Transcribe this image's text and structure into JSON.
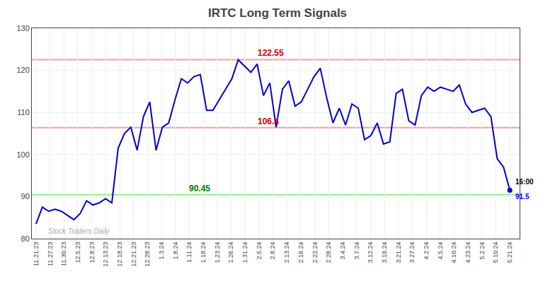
{
  "chart_data": {
    "type": "line",
    "title": "IRTC Long Term Signals",
    "x": [
      0,
      0.4533,
      0.9067,
      1.36,
      1.8133,
      2.2667,
      2.72,
      3.1733,
      3.6267,
      4.08,
      4.5333,
      4.9867,
      5.44,
      5.8933,
      6.3467,
      6.8,
      7.2533,
      7.7067,
      8.16,
      8.6133,
      9.0667,
      9.52,
      9.9733,
      10.4267,
      10.88,
      11.3333,
      11.7867,
      12.24,
      12.6933,
      13.1467,
      13.6,
      14.0533,
      14.5067,
      14.96,
      15.4133,
      15.8667,
      16.32,
      16.7733,
      17.2267,
      17.68,
      18.1333,
      18.5867,
      19.04,
      19.4933,
      19.9467,
      20.4,
      20.8533,
      21.3067,
      21.76,
      22.2133,
      22.6667,
      23.12,
      23.5733,
      24.0267,
      24.48,
      24.9333,
      25.3867,
      25.84,
      26.2933,
      26.7467,
      27.2,
      27.6533,
      28.1067,
      28.56,
      29.0133,
      29.4667,
      29.92,
      30.3733,
      30.8267,
      31.28,
      31.7333,
      32.1867,
      32.64,
      33.0933,
      33.5467,
      34
    ],
    "values": [
      83.5,
      87.5,
      86.5,
      87.0,
      86.5,
      85.5,
      84.5,
      86.0,
      89.0,
      88.0,
      88.5,
      89.5,
      88.5,
      101.5,
      105.0,
      106.5,
      101.0,
      109.0,
      112.5,
      101.0,
      106.5,
      107.5,
      113.0,
      118.0,
      117.0,
      118.5,
      119.0,
      110.5,
      110.5,
      113.0,
      115.5,
      118.0,
      122.5,
      121.0,
      119.5,
      121.5,
      114.0,
      117.0,
      106.5,
      115.5,
      117.5,
      111.5,
      112.5,
      115.5,
      118.5,
      120.5,
      113.5,
      107.5,
      111.0,
      107.0,
      112.0,
      111.0,
      103.5,
      104.5,
      107.5,
      102.5,
      103.0,
      114.5,
      115.5,
      108.0,
      107.0,
      114.0,
      116.0,
      115.0,
      116.0,
      115.5,
      115.0,
      116.5,
      112.0,
      110.0,
      110.5,
      111.0,
      109.0,
      99.0,
      97.0,
      91.5
    ],
    "color": "#0000cc",
    "xlim": [
      -0.3,
      34.7
    ],
    "xticks": [
      {
        "value": 0,
        "label": "11.21.23"
      },
      {
        "value": 1,
        "label": "11.27.23"
      },
      {
        "value": 2,
        "label": "11.30.23"
      },
      {
        "value": 3,
        "label": "12.5.23"
      },
      {
        "value": 4,
        "label": "12.8.23"
      },
      {
        "value": 5,
        "label": "12.13.23"
      },
      {
        "value": 6,
        "label": "12.18.23"
      },
      {
        "value": 7,
        "label": "12.21.23"
      },
      {
        "value": 8,
        "label": "12.28.23"
      },
      {
        "value": 9,
        "label": "1.3.24"
      },
      {
        "value": 10,
        "label": "1.8.24"
      },
      {
        "value": 11,
        "label": "1.11.24"
      },
      {
        "value": 12,
        "label": "1.18.24"
      },
      {
        "value": 13,
        "label": "1.23.24"
      },
      {
        "value": 14,
        "label": "1.26.24"
      },
      {
        "value": 15,
        "label": "1.31.24"
      },
      {
        "value": 16,
        "label": "2.5.24"
      },
      {
        "value": 17,
        "label": "2.8.24"
      },
      {
        "value": 18,
        "label": "2.13.24"
      },
      {
        "value": 19,
        "label": "2.16.24"
      },
      {
        "value": 20,
        "label": "2.22.24"
      },
      {
        "value": 21,
        "label": "2.28.24"
      },
      {
        "value": 22,
        "label": "3.4.24"
      },
      {
        "value": 23,
        "label": "3.7.24"
      },
      {
        "value": 24,
        "label": "3.12.24"
      },
      {
        "value": 25,
        "label": "3.18.24"
      },
      {
        "value": 26,
        "label": "3.21.24"
      },
      {
        "value": 27,
        "label": "3.27.24"
      },
      {
        "value": 28,
        "label": "4.2.24"
      },
      {
        "value": 29,
        "label": "4.5.24"
      },
      {
        "value": 30,
        "label": "4.10.24"
      },
      {
        "value": 31,
        "label": "4.23.24"
      },
      {
        "value": 32,
        "label": "5.2.24"
      },
      {
        "value": 33,
        "label": "5.10.24"
      },
      {
        "value": 34,
        "label": "5.21.24"
      }
    ],
    "ylim": [
      80,
      130
    ],
    "yticks": [
      80,
      90,
      100,
      110,
      120,
      130
    ],
    "grid": true,
    "hlines": [
      {
        "value": 122.55,
        "color": "#f5a0a0",
        "text_color": "#cc0000"
      },
      {
        "value": 106.4,
        "color": "#f5a0a0",
        "text_color": "#cc0000"
      },
      {
        "value": 90.45,
        "color": "#90ee90",
        "text_color": "#008000"
      }
    ],
    "annotations": [
      {
        "text": "16:00",
        "color": "#000000"
      },
      {
        "text": "91.5",
        "color": "#0000ff"
      },
      {
        "text": "Stock Traders Daily",
        "color": "#aaaaaa"
      }
    ]
  }
}
